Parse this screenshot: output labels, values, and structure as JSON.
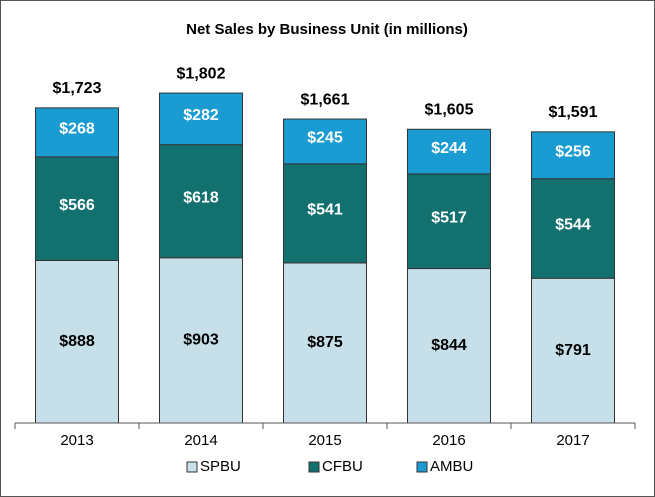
{
  "chart_data": {
    "type": "stacked_bar",
    "title": "Net Sales by Business Unit (in millions)",
    "categories": [
      "2013",
      "2014",
      "2015",
      "2016",
      "2017"
    ],
    "series": [
      {
        "name": "SPBU",
        "color": "#c6dfe9",
        "values": [
          888,
          903,
          875,
          844,
          791
        ],
        "value_labels": [
          "$888",
          "$903",
          "$875",
          "$844",
          "$791"
        ]
      },
      {
        "name": "CFBU",
        "color": "#12716f",
        "values": [
          566,
          618,
          541,
          517,
          544
        ],
        "value_labels": [
          "$566",
          "$618",
          "$541",
          "$517",
          "$544"
        ]
      },
      {
        "name": "AMBU",
        "color": "#1a9bd2",
        "values": [
          268,
          282,
          245,
          244,
          256
        ],
        "value_labels": [
          "$268",
          "$282",
          "$245",
          "$244",
          "$256"
        ]
      }
    ],
    "totals": [
      1723,
      1802,
      1661,
      1605,
      1591
    ],
    "total_labels": [
      "$1,723",
      "$1,802",
      "$1,661",
      "$1,605",
      "$1,591"
    ],
    "ylim": [
      0,
      2000
    ],
    "legend": "bottom"
  }
}
